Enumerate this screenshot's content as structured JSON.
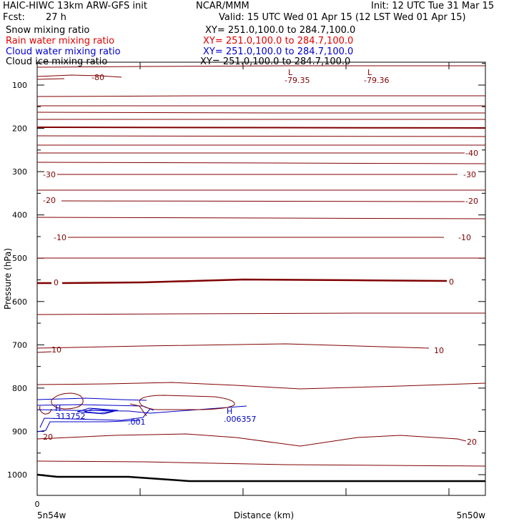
{
  "header": {
    "title_left": "HAIC-HIWC 13km ARW-GFS init",
    "center": "NCAR/MMM",
    "init": "Init: 12 UTC Tue 31 Mar 15",
    "fcst_label": "Fcst:",
    "fcst_value": "27 h",
    "valid": "Valid: 15 UTC Wed 01 Apr 15 (12 LST Wed 01 Apr 15)"
  },
  "fields": [
    {
      "name": "Snow mixing ratio",
      "xy": "XY= 251.0,100.0 to 284.7,100.0",
      "color": "#000000"
    },
    {
      "name": "Rain water mixing ratio",
      "xy": "XY= 251.0,100.0 to 284.7,100.0",
      "color": "#e00000"
    },
    {
      "name": "Cloud water mixing ratio",
      "xy": "XY= 251.0,100.0 to 284.7,100.0",
      "color": "#0000d0"
    },
    {
      "name": "Cloud ice mixing ratio",
      "xy": "XY= 251.0,100.0 to 284.7,100.0",
      "color": "#000000"
    }
  ],
  "chart_data": {
    "type": "contour",
    "ylabel": "Pressure (hPa)",
    "xlabel": "Distance (km)",
    "y_ticks": [
      100,
      200,
      300,
      400,
      500,
      600,
      700,
      800,
      900,
      1000
    ],
    "ylim": [
      1050,
      50
    ],
    "x_tick_label": "0",
    "x_left_label": "5n54w",
    "x_right_label": "5n50w",
    "temperature_labels": {
      "left": [
        "-80",
        "-30",
        "-20",
        "-10",
        "0",
        "10",
        "20"
      ],
      "right": [
        "-40",
        "-30",
        "-20",
        "-10",
        "0",
        "10",
        "20"
      ]
    },
    "lows": [
      {
        "marker": "L",
        "value": "-79.35"
      },
      {
        "marker": "L",
        "value": "-79.36"
      }
    ],
    "cloud_water": {
      "highs": [
        {
          "marker": "H",
          "value": ".313752"
        },
        {
          "marker": "H",
          "value": ".006357"
        }
      ],
      "contour_label": ".001"
    },
    "colors": {
      "temperature": "#800000",
      "cloud_water": "#0000c8",
      "surface": "#000000"
    }
  }
}
